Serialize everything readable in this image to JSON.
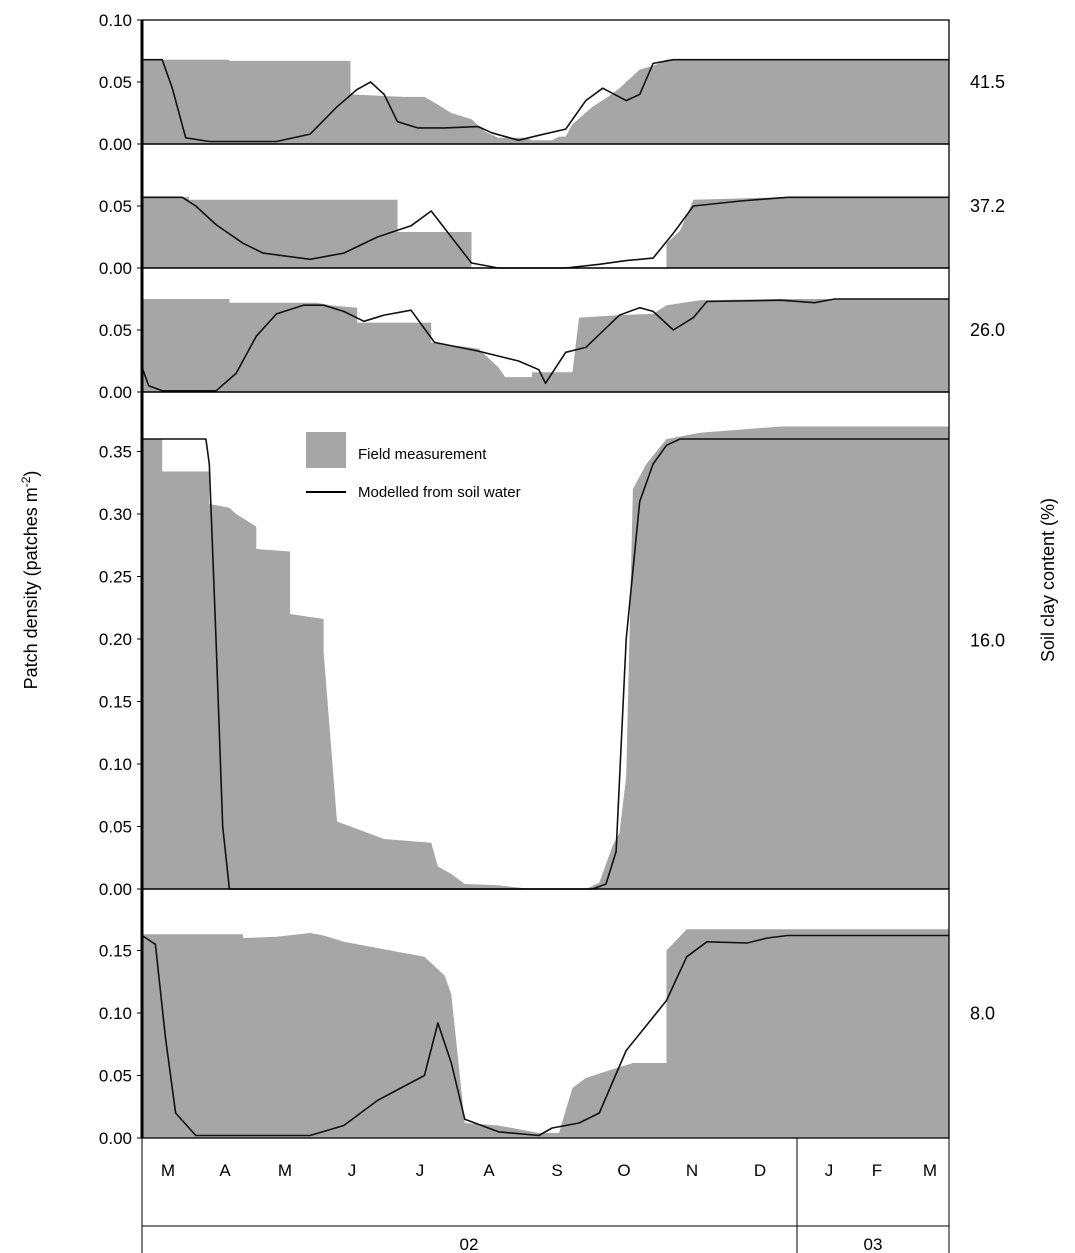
{
  "chart_data": {
    "type": "area",
    "y_axis_title": "Patch density (patches m",
    "y_axis_title_sup": "-2",
    "y_axis_title_close": ")",
    "right_axis_title": "Soil clay content (%)",
    "months": [
      "M",
      "A",
      "M",
      "J",
      "J",
      "A",
      "S",
      "O",
      "N",
      "D",
      "J",
      "F",
      "M"
    ],
    "years": [
      "02",
      "03"
    ],
    "legend": {
      "field": "Field measurement",
      "model": "Modelled from soil water"
    },
    "panels": [
      {
        "clay": "41.5",
        "ylim": [
          0,
          0.1
        ],
        "yticks": [
          "0.10",
          "0.05",
          "0.00"
        ],
        "field": [
          [
            0,
            0.068
          ],
          [
            1.3,
            0.068
          ],
          [
            1.3,
            0.067
          ],
          [
            3.1,
            0.067
          ],
          [
            3.1,
            0.04
          ],
          [
            3.9,
            0.038
          ],
          [
            4.2,
            0.038
          ],
          [
            4.3,
            0.035
          ],
          [
            4.6,
            0.025
          ],
          [
            4.9,
            0.02
          ],
          [
            5.1,
            0.01
          ],
          [
            5.3,
            0.005
          ],
          [
            5.7,
            0.005
          ],
          [
            5.8,
            0.003
          ],
          [
            6.1,
            0.003
          ],
          [
            6.2,
            0.006
          ],
          [
            6.3,
            0.006
          ],
          [
            6.4,
            0.016
          ],
          [
            6.7,
            0.03
          ],
          [
            6.9,
            0.037
          ],
          [
            7.1,
            0.045
          ],
          [
            7.4,
            0.06
          ],
          [
            7.6,
            0.063
          ],
          [
            7.8,
            0.068
          ],
          [
            12,
            0.068
          ]
        ],
        "model": [
          [
            0,
            0.068
          ],
          [
            0.3,
            0.068
          ],
          [
            0.45,
            0.045
          ],
          [
            0.65,
            0.005
          ],
          [
            1,
            0.002
          ],
          [
            2,
            0.002
          ],
          [
            2.5,
            0.008
          ],
          [
            2.9,
            0.03
          ],
          [
            3.2,
            0.044
          ],
          [
            3.4,
            0.05
          ],
          [
            3.6,
            0.04
          ],
          [
            3.8,
            0.018
          ],
          [
            4.1,
            0.013
          ],
          [
            4.5,
            0.013
          ],
          [
            5.0,
            0.014
          ],
          [
            5.2,
            0.009
          ],
          [
            5.6,
            0.003
          ],
          [
            5.9,
            0.007
          ],
          [
            6.3,
            0.012
          ],
          [
            6.6,
            0.035
          ],
          [
            6.85,
            0.045
          ],
          [
            7.2,
            0.035
          ],
          [
            7.4,
            0.04
          ],
          [
            7.6,
            0.065
          ],
          [
            7.9,
            0.068
          ],
          [
            12,
            0.068
          ]
        ]
      },
      {
        "clay": "37.2",
        "ylim": [
          0,
          0.1
        ],
        "yticks": [
          "0.05",
          "0.00"
        ],
        "field": [
          [
            0,
            0.057
          ],
          [
            0.7,
            0.057
          ],
          [
            0.7,
            0.055
          ],
          [
            3.8,
            0.055
          ],
          [
            3.8,
            0.029
          ],
          [
            4.9,
            0.029
          ],
          [
            4.9,
            0.0
          ],
          [
            7.8,
            0.0
          ],
          [
            7.8,
            0.02
          ],
          [
            8.0,
            0.03
          ],
          [
            8.2,
            0.055
          ],
          [
            8.8,
            0.056
          ],
          [
            9.5,
            0.057
          ],
          [
            12,
            0.057
          ]
        ],
        "model": [
          [
            0,
            0.057
          ],
          [
            0.6,
            0.057
          ],
          [
            0.8,
            0.05
          ],
          [
            1.1,
            0.035
          ],
          [
            1.5,
            0.02
          ],
          [
            1.8,
            0.012
          ],
          [
            2.5,
            0.007
          ],
          [
            3.0,
            0.012
          ],
          [
            3.5,
            0.025
          ],
          [
            4.0,
            0.034
          ],
          [
            4.3,
            0.046
          ],
          [
            4.6,
            0.025
          ],
          [
            4.9,
            0.004
          ],
          [
            5.3,
            0.0
          ],
          [
            6.3,
            0.0
          ],
          [
            6.8,
            0.003
          ],
          [
            7.2,
            0.006
          ],
          [
            7.6,
            0.008
          ],
          [
            7.9,
            0.028
          ],
          [
            8.2,
            0.05
          ],
          [
            8.9,
            0.054
          ],
          [
            9.6,
            0.057
          ],
          [
            12,
            0.057
          ]
        ]
      },
      {
        "clay": "26.0",
        "ylim": [
          0,
          0.1
        ],
        "yticks": [
          "0.05",
          "0.00"
        ],
        "field": [
          [
            0,
            0.075
          ],
          [
            1.3,
            0.075
          ],
          [
            1.3,
            0.072
          ],
          [
            2.6,
            0.072
          ],
          [
            2.8,
            0.07
          ],
          [
            3.2,
            0.068
          ],
          [
            3.2,
            0.056
          ],
          [
            4.3,
            0.056
          ],
          [
            4.3,
            0.04
          ],
          [
            5.0,
            0.035
          ],
          [
            5.3,
            0.02
          ],
          [
            5.4,
            0.012
          ],
          [
            5.8,
            0.012
          ],
          [
            5.8,
            0.016
          ],
          [
            6.4,
            0.016
          ],
          [
            6.5,
            0.06
          ],
          [
            7.1,
            0.062
          ],
          [
            7.6,
            0.063
          ],
          [
            7.8,
            0.07
          ],
          [
            8.3,
            0.074
          ],
          [
            9.5,
            0.075
          ],
          [
            12,
            0.075
          ]
        ],
        "model": [
          [
            0,
            0.02
          ],
          [
            0.1,
            0.005
          ],
          [
            0.3,
            0.001
          ],
          [
            1.1,
            0.001
          ],
          [
            1.4,
            0.015
          ],
          [
            1.7,
            0.045
          ],
          [
            2.0,
            0.063
          ],
          [
            2.4,
            0.07
          ],
          [
            2.7,
            0.07
          ],
          [
            3.0,
            0.065
          ],
          [
            3.3,
            0.057
          ],
          [
            3.6,
            0.062
          ],
          [
            4.0,
            0.066
          ],
          [
            4.35,
            0.04
          ],
          [
            5.0,
            0.033
          ],
          [
            5.6,
            0.025
          ],
          [
            5.9,
            0.018
          ],
          [
            6.0,
            0.007
          ],
          [
            6.3,
            0.032
          ],
          [
            6.6,
            0.036
          ],
          [
            7.1,
            0.062
          ],
          [
            7.4,
            0.068
          ],
          [
            7.6,
            0.065
          ],
          [
            7.9,
            0.05
          ],
          [
            8.2,
            0.06
          ],
          [
            8.4,
            0.073
          ],
          [
            9.5,
            0.074
          ],
          [
            10,
            0.072
          ],
          [
            10.3,
            0.075
          ],
          [
            12,
            0.075
          ]
        ]
      },
      {
        "clay": "16.0",
        "ylim": [
          0,
          0.38
        ],
        "yticks": [
          "0.35",
          "0.30",
          "0.25",
          "0.20",
          "0.15",
          "0.10",
          "0.05",
          "0.00"
        ],
        "field": [
          [
            0,
            0.36
          ],
          [
            0.3,
            0.36
          ],
          [
            0.3,
            0.334
          ],
          [
            1.0,
            0.334
          ],
          [
            1.0,
            0.308
          ],
          [
            1.3,
            0.305
          ],
          [
            1.4,
            0.3
          ],
          [
            1.7,
            0.29
          ],
          [
            1.7,
            0.272
          ],
          [
            2.2,
            0.27
          ],
          [
            2.2,
            0.22
          ],
          [
            2.7,
            0.216
          ],
          [
            2.7,
            0.19
          ],
          [
            2.9,
            0.054
          ],
          [
            3.2,
            0.048
          ],
          [
            3.6,
            0.04
          ],
          [
            4.3,
            0.037
          ],
          [
            4.4,
            0.018
          ],
          [
            4.6,
            0.012
          ],
          [
            4.8,
            0.004
          ],
          [
            5.3,
            0.003
          ],
          [
            5.8,
            0.0
          ],
          [
            6.6,
            0.0
          ],
          [
            6.8,
            0.005
          ],
          [
            7.0,
            0.035
          ],
          [
            7.1,
            0.045
          ],
          [
            7.2,
            0.09
          ],
          [
            7.3,
            0.32
          ],
          [
            7.5,
            0.34
          ],
          [
            7.8,
            0.36
          ],
          [
            8.3,
            0.365
          ],
          [
            9.5,
            0.37
          ],
          [
            12,
            0.37
          ]
        ],
        "model": [
          [
            0,
            0.36
          ],
          [
            0.95,
            0.36
          ],
          [
            1.0,
            0.34
          ],
          [
            1.1,
            0.2
          ],
          [
            1.2,
            0.05
          ],
          [
            1.3,
            0.0
          ],
          [
            6.7,
            0.0
          ],
          [
            6.9,
            0.004
          ],
          [
            7.05,
            0.03
          ],
          [
            7.2,
            0.2
          ],
          [
            7.4,
            0.31
          ],
          [
            7.6,
            0.34
          ],
          [
            7.8,
            0.355
          ],
          [
            8.0,
            0.36
          ],
          [
            12,
            0.36
          ]
        ]
      },
      {
        "clay": "8.0",
        "ylim": [
          0,
          0.18
        ],
        "yticks": [
          "0.15",
          "0.10",
          "0.05",
          "0.00"
        ],
        "field": [
          [
            0,
            0.163
          ],
          [
            1.5,
            0.163
          ],
          [
            1.5,
            0.16
          ],
          [
            2.0,
            0.161
          ],
          [
            2.5,
            0.164
          ],
          [
            2.7,
            0.162
          ],
          [
            3.0,
            0.157
          ],
          [
            4.2,
            0.145
          ],
          [
            4.5,
            0.13
          ],
          [
            4.6,
            0.115
          ],
          [
            4.8,
            0.012
          ],
          [
            5.3,
            0.01
          ],
          [
            5.9,
            0.004
          ],
          [
            6.2,
            0.004
          ],
          [
            6.4,
            0.04
          ],
          [
            6.6,
            0.048
          ],
          [
            7.0,
            0.055
          ],
          [
            7.3,
            0.06
          ],
          [
            7.8,
            0.06
          ],
          [
            7.8,
            0.15
          ],
          [
            8.1,
            0.167
          ],
          [
            12,
            0.167
          ]
        ],
        "model": [
          [
            0,
            0.162
          ],
          [
            0.2,
            0.155
          ],
          [
            0.35,
            0.08
          ],
          [
            0.5,
            0.02
          ],
          [
            0.8,
            0.002
          ],
          [
            2.5,
            0.002
          ],
          [
            3.0,
            0.01
          ],
          [
            3.5,
            0.03
          ],
          [
            4.2,
            0.05
          ],
          [
            4.4,
            0.092
          ],
          [
            4.6,
            0.06
          ],
          [
            4.8,
            0.015
          ],
          [
            5.3,
            0.005
          ],
          [
            5.9,
            0.002
          ],
          [
            6.1,
            0.008
          ],
          [
            6.5,
            0.012
          ],
          [
            6.8,
            0.02
          ],
          [
            7.2,
            0.07
          ],
          [
            7.5,
            0.09
          ],
          [
            7.8,
            0.11
          ],
          [
            8.1,
            0.145
          ],
          [
            8.4,
            0.157
          ],
          [
            9.0,
            0.156
          ],
          [
            9.3,
            0.16
          ],
          [
            9.6,
            0.162
          ],
          [
            12,
            0.162
          ]
        ]
      }
    ]
  }
}
